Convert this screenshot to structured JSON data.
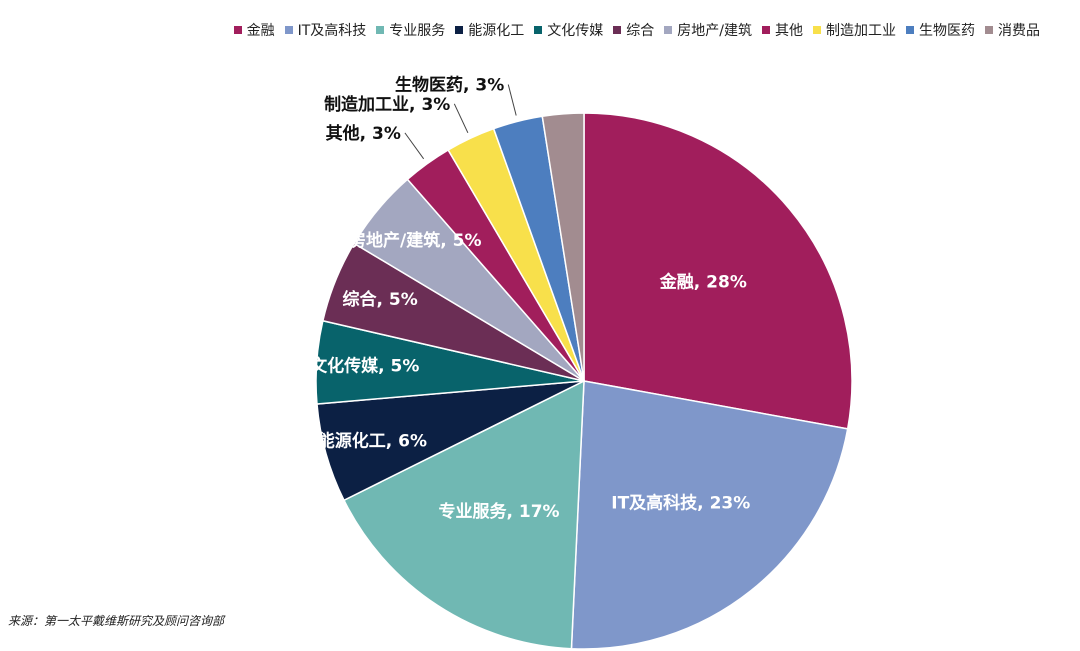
{
  "chart_data": {
    "type": "pie",
    "categories": [
      "金融",
      "IT及高科技",
      "专业服务",
      "能源化工",
      "文化传媒",
      "综合",
      "房地产/建筑",
      "其他",
      "制造加工业",
      "生物医药",
      "消费品"
    ],
    "values": [
      28,
      23,
      17,
      6,
      5,
      5,
      5,
      3,
      3,
      3,
      2.5
    ],
    "labels": [
      "金融, 28%",
      "IT及高科技, 23%",
      "专业服务, 17%",
      "能源化工, 6%",
      "文化传媒, 5%",
      "综合, 5%",
      "房地产/建筑, 5%",
      "其他, 3%",
      "制造加工业, 3%",
      "生物医药, 3%",
      ""
    ],
    "colors": [
      "#A11E5C",
      "#7F97CA",
      "#70B8B3",
      "#0C2044",
      "#08636B",
      "#6B2E55",
      "#A3A7C0",
      "#A11E5C",
      "#F8E04B",
      "#4D7EBF",
      "#A28C90"
    ],
    "legend_position": "top"
  },
  "footer": {
    "source": "来源：第一太平戴维斯研究及顾问咨询部"
  }
}
